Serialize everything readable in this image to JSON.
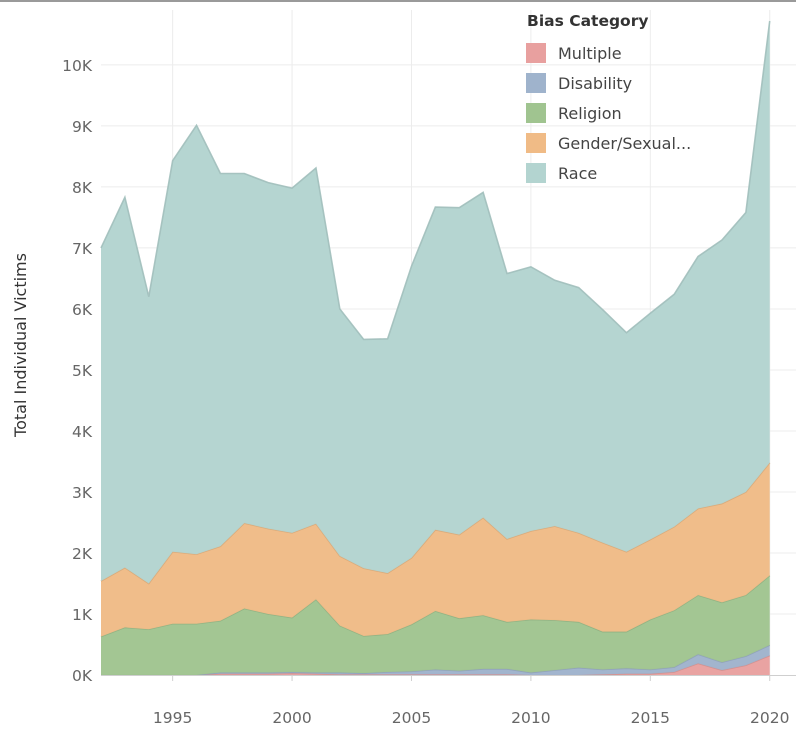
{
  "chart_data": {
    "type": "area",
    "stacked": true,
    "title": "",
    "xlabel": "",
    "ylabel": "Total Individual Victims",
    "xlim": [
      1992,
      2021.1
    ],
    "ylim": [
      0,
      10.9
    ],
    "grid": true,
    "legend_title": "Bias Category",
    "legend_position": "top-right",
    "x": [
      1992,
      1993,
      1994,
      1995,
      1996,
      1997,
      1998,
      1999,
      2000,
      2001,
      2002,
      2003,
      2004,
      2005,
      2006,
      2007,
      2008,
      2009,
      2010,
      2011,
      2012,
      2013,
      2014,
      2015,
      2016,
      2017,
      2018,
      2019,
      2020
    ],
    "x_ticks": [
      1995,
      2000,
      2005,
      2010,
      2015,
      2020
    ],
    "y_ticks": [
      0,
      1,
      2,
      3,
      4,
      5,
      6,
      7,
      8,
      9,
      10
    ],
    "y_tick_labels": [
      "0K",
      "1K",
      "2K",
      "3K",
      "4K",
      "5K",
      "6K",
      "7K",
      "8K",
      "9K",
      "10K"
    ],
    "series": [
      {
        "name": "Multiple",
        "color": "#e8a09f",
        "values": [
          0,
          0,
          0,
          0,
          0,
          0.02,
          0.02,
          0.02,
          0.03,
          0.02,
          0.01,
          0.01,
          0.01,
          0.01,
          0.01,
          0.01,
          0.01,
          0.01,
          0,
          0,
          0,
          0.01,
          0.02,
          0.02,
          0.05,
          0.19,
          0.08,
          0.16,
          0.32
        ]
      },
      {
        "name": "Disability",
        "color": "#9fb3cc",
        "values": [
          0,
          0,
          0,
          0,
          0,
          0.02,
          0.02,
          0.02,
          0.02,
          0.02,
          0.03,
          0.02,
          0.04,
          0.05,
          0.08,
          0.06,
          0.09,
          0.09,
          0.04,
          0.08,
          0.12,
          0.08,
          0.09,
          0.07,
          0.08,
          0.15,
          0.13,
          0.15,
          0.17
        ]
      },
      {
        "name": "Religion",
        "color": "#a0c490",
        "values": [
          0.63,
          0.78,
          0.75,
          0.84,
          0.84,
          0.85,
          1.05,
          0.96,
          0.89,
          1.2,
          0.77,
          0.61,
          0.62,
          0.77,
          0.96,
          0.86,
          0.88,
          0.77,
          0.87,
          0.82,
          0.75,
          0.62,
          0.6,
          0.82,
          0.93,
          0.97,
          0.98,
          1.0,
          1.14
        ]
      },
      {
        "name": "Gender/Sexual...",
        "color": "#f0bb86",
        "values": [
          0.91,
          0.98,
          0.75,
          1.18,
          1.14,
          1.22,
          1.4,
          1.4,
          1.39,
          1.24,
          1.14,
          1.11,
          1.0,
          1.09,
          1.33,
          1.37,
          1.6,
          1.36,
          1.45,
          1.54,
          1.46,
          1.46,
          1.31,
          1.31,
          1.37,
          1.42,
          1.62,
          1.69,
          1.85
        ]
      },
      {
        "name": "Race",
        "color": "#b3d4d0",
        "values": [
          5.46,
          6.07,
          4.7,
          6.41,
          7.03,
          6.11,
          5.73,
          5.67,
          5.65,
          5.83,
          4.05,
          3.75,
          3.84,
          4.78,
          5.29,
          5.36,
          5.33,
          4.35,
          4.33,
          4.03,
          4.02,
          3.82,
          3.59,
          3.71,
          3.81,
          4.13,
          4.32,
          4.58,
          7.24
        ]
      }
    ]
  }
}
